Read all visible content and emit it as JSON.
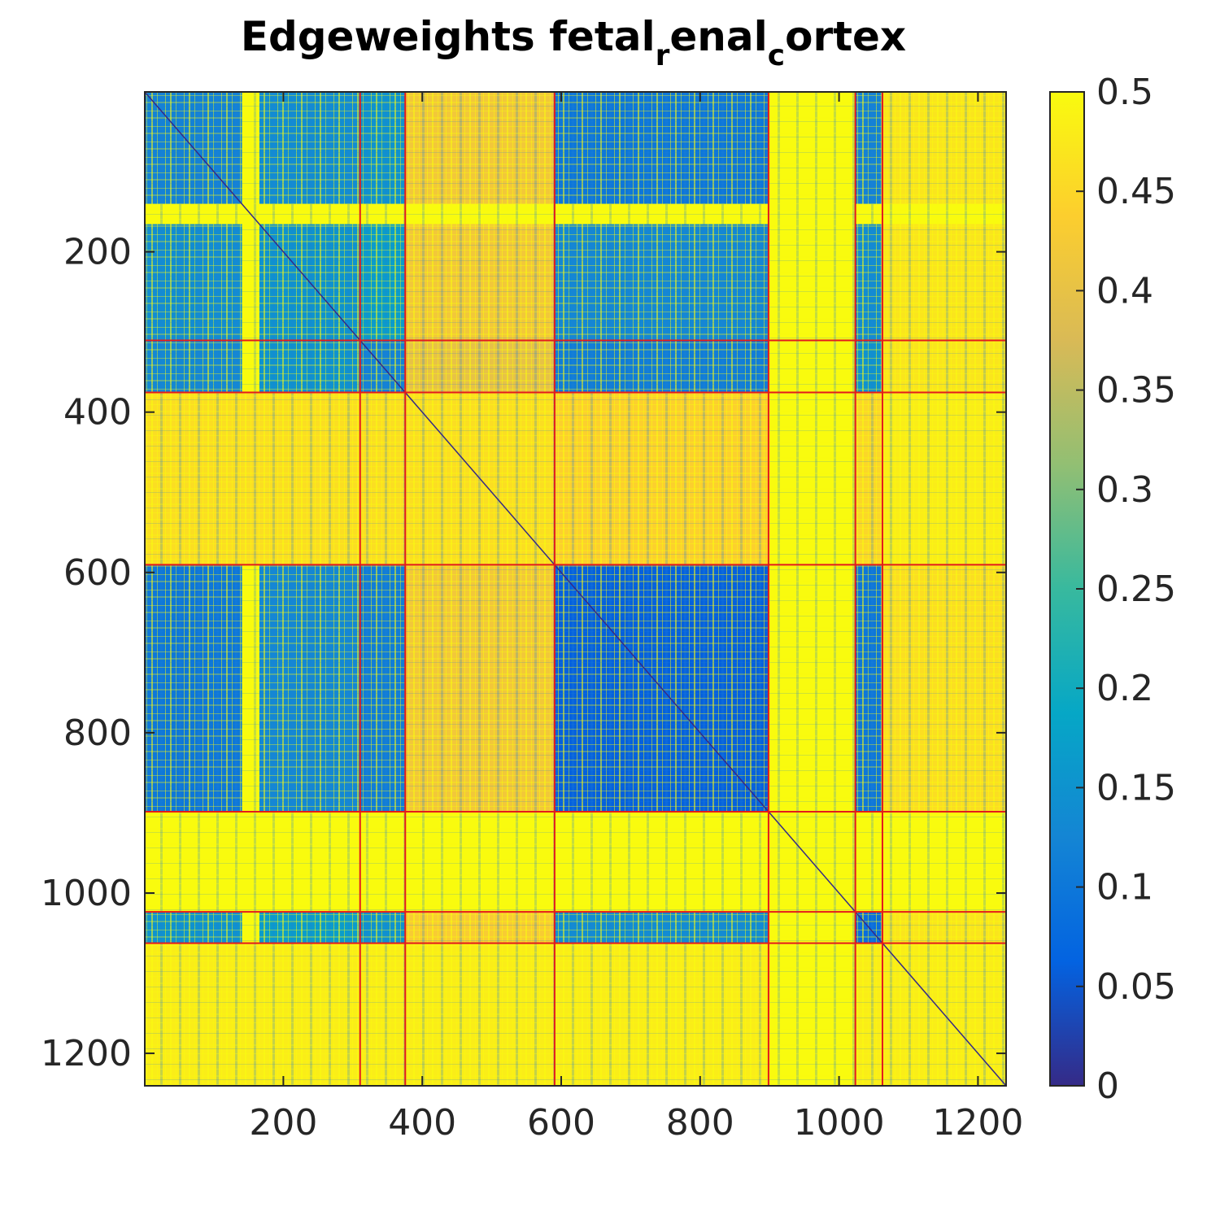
{
  "chart_data": {
    "type": "heatmap",
    "title": {
      "parts": [
        {
          "text": "Edgeweights fetal",
          "sub": false
        },
        {
          "text": "r",
          "sub": true
        },
        {
          "text": "enal",
          "sub": false
        },
        {
          "text": "c",
          "sub": true
        },
        {
          "text": "ortex",
          "sub": false
        }
      ]
    },
    "n": 1240,
    "xlim": [
      0.5,
      1240.5
    ],
    "ylim": [
      0.5,
      1240.5
    ],
    "y_reversed": true,
    "xticks": [
      200,
      400,
      600,
      800,
      1000,
      1200
    ],
    "xtick_labels": [
      "200",
      "400",
      "600",
      "800",
      "1000",
      "1200"
    ],
    "yticks": [
      200,
      400,
      600,
      800,
      1000,
      1200
    ],
    "ytick_labels": [
      "200",
      "400",
      "600",
      "800",
      "1000",
      "1200"
    ],
    "cluster_boundaries": [
      310,
      375,
      590,
      898,
      1023,
      1062
    ],
    "boundary_color": "#e41a1c",
    "colorbar": {
      "min": 0,
      "max": 0.5,
      "ticks": [
        0,
        0.05,
        0.1,
        0.15,
        0.2,
        0.25,
        0.3,
        0.35,
        0.4,
        0.45,
        0.5
      ],
      "tick_labels": [
        "0",
        "0.05",
        "0.1",
        "0.15",
        "0.2",
        "0.25",
        "0.3",
        "0.35",
        "0.4",
        "0.45",
        "0.5"
      ],
      "colormap": "parula",
      "colormap_stops": [
        "#352a87",
        "#0363e1",
        "#1485d4",
        "#06a7c6",
        "#38b99e",
        "#92bf73",
        "#d9ba56",
        "#fcce2e",
        "#f9fb0e"
      ]
    },
    "blocks": [
      {
        "rows": [
          1,
          140
        ],
        "cols": [
          1,
          140
        ],
        "value": 0.12
      },
      {
        "rows": [
          1,
          140
        ],
        "cols": [
          141,
          165
        ],
        "value": 0.5
      },
      {
        "rows": [
          1,
          140
        ],
        "cols": [
          166,
          310
        ],
        "value": 0.14
      },
      {
        "rows": [
          1,
          140
        ],
        "cols": [
          311,
          375
        ],
        "value": 0.15
      },
      {
        "rows": [
          1,
          140
        ],
        "cols": [
          376,
          590
        ],
        "value": 0.42
      },
      {
        "rows": [
          1,
          140
        ],
        "cols": [
          591,
          898
        ],
        "value": 0.1
      },
      {
        "rows": [
          1,
          140
        ],
        "cols": [
          899,
          1023
        ],
        "value": 0.5
      },
      {
        "rows": [
          1,
          140
        ],
        "cols": [
          1024,
          1062
        ],
        "value": 0.12
      },
      {
        "rows": [
          1,
          140
        ],
        "cols": [
          1063,
          1240
        ],
        "value": 0.47
      },
      {
        "rows": [
          141,
          165
        ],
        "cols": [
          1,
          1240
        ],
        "value": 0.5
      },
      {
        "rows": [
          166,
          310
        ],
        "cols": [
          1,
          140
        ],
        "value": 0.14
      },
      {
        "rows": [
          166,
          310
        ],
        "cols": [
          141,
          165
        ],
        "value": 0.5
      },
      {
        "rows": [
          166,
          310
        ],
        "cols": [
          166,
          310
        ],
        "value": 0.15
      },
      {
        "rows": [
          166,
          310
        ],
        "cols": [
          311,
          375
        ],
        "value": 0.17
      },
      {
        "rows": [
          166,
          310
        ],
        "cols": [
          376,
          590
        ],
        "value": 0.42
      },
      {
        "rows": [
          166,
          310
        ],
        "cols": [
          591,
          898
        ],
        "value": 0.13
      },
      {
        "rows": [
          166,
          310
        ],
        "cols": [
          899,
          1023
        ],
        "value": 0.5
      },
      {
        "rows": [
          166,
          310
        ],
        "cols": [
          1024,
          1062
        ],
        "value": 0.14
      },
      {
        "rows": [
          166,
          310
        ],
        "cols": [
          1063,
          1240
        ],
        "value": 0.47
      },
      {
        "rows": [
          311,
          375
        ],
        "cols": [
          1,
          140
        ],
        "value": 0.13
      },
      {
        "rows": [
          311,
          375
        ],
        "cols": [
          141,
          165
        ],
        "value": 0.5
      },
      {
        "rows": [
          311,
          375
        ],
        "cols": [
          166,
          310
        ],
        "value": 0.15
      },
      {
        "rows": [
          311,
          375
        ],
        "cols": [
          311,
          375
        ],
        "value": 0.12
      },
      {
        "rows": [
          311,
          375
        ],
        "cols": [
          376,
          590
        ],
        "value": 0.4
      },
      {
        "rows": [
          311,
          375
        ],
        "cols": [
          591,
          898
        ],
        "value": 0.11
      },
      {
        "rows": [
          311,
          375
        ],
        "cols": [
          899,
          1023
        ],
        "value": 0.5
      },
      {
        "rows": [
          311,
          375
        ],
        "cols": [
          1024,
          1062
        ],
        "value": 0.15
      },
      {
        "rows": [
          311,
          375
        ],
        "cols": [
          1063,
          1240
        ],
        "value": 0.47
      },
      {
        "rows": [
          376,
          590
        ],
        "cols": [
          1,
          590
        ],
        "value": 0.46
      },
      {
        "rows": [
          376,
          590
        ],
        "cols": [
          591,
          898
        ],
        "value": 0.44
      },
      {
        "rows": [
          376,
          590
        ],
        "cols": [
          899,
          1023
        ],
        "value": 0.5
      },
      {
        "rows": [
          376,
          590
        ],
        "cols": [
          1024,
          1062
        ],
        "value": 0.45
      },
      {
        "rows": [
          376,
          590
        ],
        "cols": [
          1063,
          1240
        ],
        "value": 0.48
      },
      {
        "rows": [
          591,
          898
        ],
        "cols": [
          1,
          140
        ],
        "value": 0.1
      },
      {
        "rows": [
          591,
          898
        ],
        "cols": [
          141,
          165
        ],
        "value": 0.5
      },
      {
        "rows": [
          591,
          898
        ],
        "cols": [
          166,
          310
        ],
        "value": 0.13
      },
      {
        "rows": [
          591,
          898
        ],
        "cols": [
          311,
          375
        ],
        "value": 0.11
      },
      {
        "rows": [
          591,
          898
        ],
        "cols": [
          376,
          590
        ],
        "value": 0.42
      },
      {
        "rows": [
          591,
          898
        ],
        "cols": [
          591,
          898
        ],
        "value": 0.06
      },
      {
        "rows": [
          591,
          898
        ],
        "cols": [
          899,
          1023
        ],
        "value": 0.5
      },
      {
        "rows": [
          591,
          898
        ],
        "cols": [
          1024,
          1062
        ],
        "value": 0.1
      },
      {
        "rows": [
          591,
          898
        ],
        "cols": [
          1063,
          1240
        ],
        "value": 0.46
      },
      {
        "rows": [
          899,
          1023
        ],
        "cols": [
          1,
          1023
        ],
        "value": 0.5
      },
      {
        "rows": [
          899,
          1023
        ],
        "cols": [
          1024,
          1062
        ],
        "value": 0.5
      },
      {
        "rows": [
          899,
          1023
        ],
        "cols": [
          1063,
          1240
        ],
        "value": 0.5
      },
      {
        "rows": [
          1024,
          1062
        ],
        "cols": [
          1,
          140
        ],
        "value": 0.15
      },
      {
        "rows": [
          1024,
          1062
        ],
        "cols": [
          141,
          165
        ],
        "value": 0.5
      },
      {
        "rows": [
          1024,
          1062
        ],
        "cols": [
          166,
          310
        ],
        "value": 0.17
      },
      {
        "rows": [
          1024,
          1062
        ],
        "cols": [
          311,
          375
        ],
        "value": 0.15
      },
      {
        "rows": [
          1024,
          1062
        ],
        "cols": [
          376,
          590
        ],
        "value": 0.43
      },
      {
        "rows": [
          1024,
          1062
        ],
        "cols": [
          591,
          898
        ],
        "value": 0.14
      },
      {
        "rows": [
          1024,
          1062
        ],
        "cols": [
          899,
          1023
        ],
        "value": 0.5
      },
      {
        "rows": [
          1024,
          1062
        ],
        "cols": [
          1024,
          1062
        ],
        "value": 0.08
      },
      {
        "rows": [
          1024,
          1062
        ],
        "cols": [
          1063,
          1240
        ],
        "value": 0.47
      },
      {
        "rows": [
          1063,
          1240
        ],
        "cols": [
          1,
          898
        ],
        "value": 0.48
      },
      {
        "rows": [
          1063,
          1240
        ],
        "cols": [
          899,
          1023
        ],
        "value": 0.5
      },
      {
        "rows": [
          1063,
          1240
        ],
        "cols": [
          1024,
          1062
        ],
        "value": 0.48
      },
      {
        "rows": [
          1063,
          1240
        ],
        "cols": [
          1063,
          1240
        ],
        "value": 0.48
      }
    ]
  }
}
